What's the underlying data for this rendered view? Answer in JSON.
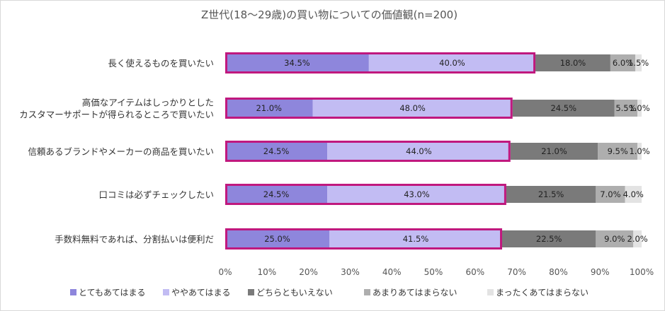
{
  "chart_data": {
    "type": "bar",
    "orientation": "horizontal",
    "stacked": true,
    "title": "Z世代(18〜29歳)の買い物についての価値観(n=200)",
    "categories": [
      "長く使えるものを買いたい",
      "高価なアイテムはしっかりとした\nカスタマーサポートが得られるところで買いたい",
      "信頼あるブランドやメーカーの商品を買いたい",
      "口コミは必ずチェックしたい",
      "手数料無料であれば、分割払いは便利だ"
    ],
    "series": [
      {
        "name": "とてもあてはまる",
        "color": "#8e86dc",
        "values": [
          34.5,
          21.0,
          24.5,
          24.5,
          25.0
        ],
        "labels": [
          "34.5%",
          "21.0%",
          "24.5%",
          "24.5%",
          "25.0%"
        ]
      },
      {
        "name": "ややあてはまる",
        "color": "#c2bcf3",
        "values": [
          40.0,
          48.0,
          44.0,
          43.0,
          41.5
        ],
        "labels": [
          "40.0%",
          "48.0%",
          "44.0%",
          "43.0%",
          "41.5%"
        ]
      },
      {
        "name": "どちらともいえない",
        "color": "#7a7a7a",
        "values": [
          18.0,
          24.5,
          21.0,
          21.5,
          22.5
        ],
        "labels": [
          "18.0%",
          "24.5%",
          "21.0%",
          "21.5%",
          "22.5%"
        ]
      },
      {
        "name": "あまりあてはまらない",
        "color": "#aeaeae",
        "values": [
          6.0,
          5.5,
          9.5,
          7.0,
          9.0
        ],
        "labels": [
          "6.0%",
          "5.5%",
          "9.5%",
          "7.0%",
          "9.0%"
        ]
      },
      {
        "name": "まったくあてはまらない",
        "color": "#e3e3e3",
        "values": [
          1.5,
          1.0,
          1.0,
          4.0,
          2.0
        ],
        "labels": [
          "1.5%",
          "1.0%",
          "1.0%",
          "4.0%",
          "2.0%"
        ]
      }
    ],
    "xlim": [
      0,
      100
    ],
    "xticks": [
      "0%",
      "10%",
      "20%",
      "30%",
      "40%",
      "50%",
      "60%",
      "70%",
      "80%",
      "90%",
      "100%"
    ],
    "highlight": {
      "description_series": [
        "とてもあてはまる",
        "ややあてはまる"
      ],
      "color": "#c0187e"
    },
    "legend_position": "bottom",
    "grid": false
  }
}
